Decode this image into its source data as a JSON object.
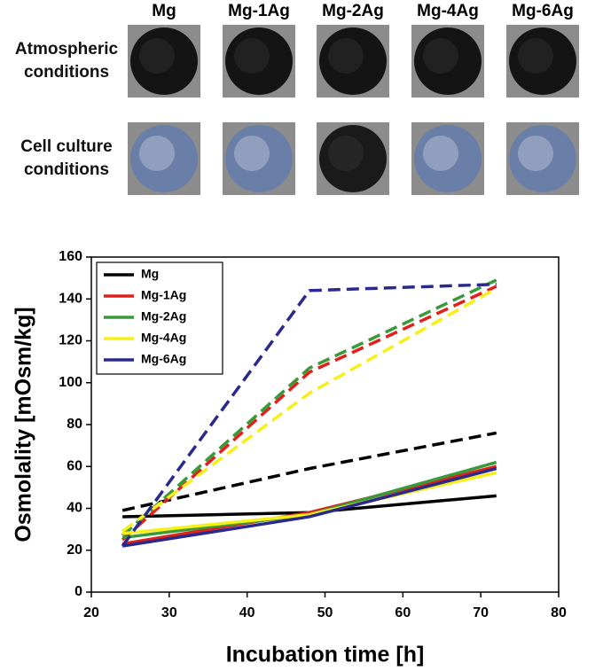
{
  "image_panel": {
    "columns": [
      "Mg",
      "Mg-1Ag",
      "Mg-2Ag",
      "Mg-4Ag",
      "Mg-6Ag"
    ],
    "rows": [
      "Atmospheric conditions",
      "Cell culture conditions"
    ]
  },
  "chart_data": {
    "type": "line",
    "x_label": "Incubation time [h]",
    "y_label": "Osmolality [mOsm/kg]",
    "x": [
      24,
      48,
      72
    ],
    "series": [
      {
        "name": "Mg",
        "color": "#000000",
        "values": [
          36,
          38,
          46
        ],
        "dashed_values": [
          39,
          59,
          76
        ]
      },
      {
        "name": "Mg-1Ag",
        "color": "#e0201b",
        "values": [
          23,
          38,
          60
        ],
        "dashed_values": [
          25,
          105,
          146
        ]
      },
      {
        "name": "Mg-2Ag",
        "color": "#3a9a3a",
        "values": [
          26,
          37,
          62
        ],
        "dashed_values": [
          27,
          107,
          149
        ]
      },
      {
        "name": "Mg-4Ag",
        "color": "#f5f01a",
        "values": [
          28,
          37,
          57
        ],
        "dashed_values": [
          29,
          95,
          145
        ]
      },
      {
        "name": "Mg-6Ag",
        "color": "#2a2a8c",
        "values": [
          22,
          36,
          59
        ],
        "dashed_values": [
          22,
          144,
          147
        ]
      }
    ],
    "xlim": [
      20,
      80
    ],
    "xticks": [
      20,
      30,
      40,
      50,
      60,
      70,
      80
    ],
    "ylim": [
      0,
      160
    ],
    "yticks": [
      0,
      20,
      40,
      60,
      80,
      100,
      120,
      140,
      160
    ],
    "legend": "upper left",
    "grid": false
  }
}
